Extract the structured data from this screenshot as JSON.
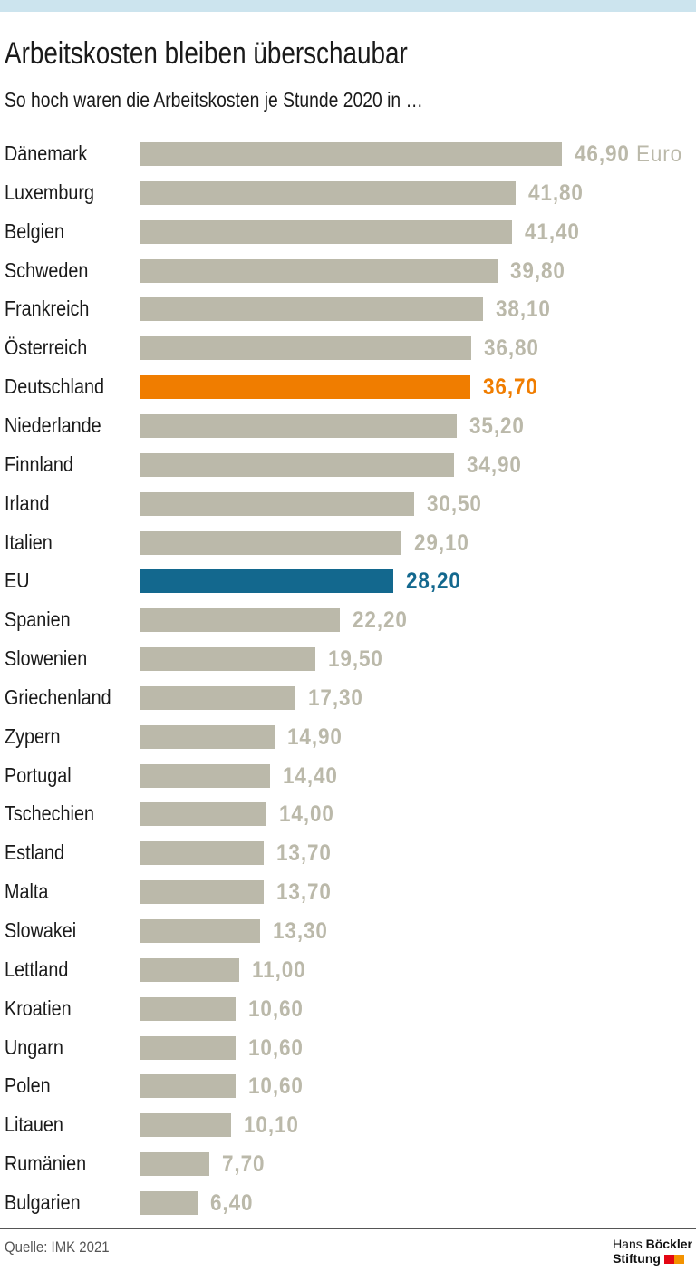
{
  "title": "Arbeitskosten bleiben überschaubar",
  "subtitle": "So hoch waren die Arbeitskosten je Stunde 2020 in …",
  "source": "Quelle: IMK 2021",
  "logo": {
    "line1a": "Hans",
    "line1b": "Böckler",
    "line2": "Stiftung"
  },
  "colors": {
    "default": "#bbb9aa",
    "highlight_germany": "#f07d00",
    "highlight_eu": "#13688e",
    "value_default": "#bbb9aa",
    "logo_red": "#e30613",
    "logo_orange": "#f39200"
  },
  "chart_data": {
    "type": "bar",
    "orientation": "horizontal",
    "unit": "Euro",
    "categories": [
      "Dänemark",
      "Luxemburg",
      "Belgien",
      "Schweden",
      "Frankreich",
      "Österreich",
      "Deutschland",
      "Niederlande",
      "Finnland",
      "Irland",
      "Italien",
      "EU",
      "Spanien",
      "Slowenien",
      "Griechenland",
      "Zypern",
      "Portugal",
      "Tschechien",
      "Estland",
      "Malta",
      "Slowakei",
      "Lettland",
      "Kroatien",
      "Ungarn",
      "Polen",
      "Litauen",
      "Rumänien",
      "Bulgarien"
    ],
    "values": [
      46.9,
      41.8,
      41.4,
      39.8,
      38.1,
      36.8,
      36.7,
      35.2,
      34.9,
      30.5,
      29.1,
      28.2,
      22.2,
      19.5,
      17.3,
      14.9,
      14.4,
      14.0,
      13.7,
      13.7,
      13.3,
      11.0,
      10.6,
      10.6,
      10.6,
      10.1,
      7.7,
      6.4
    ],
    "value_labels": [
      "46,90",
      "41,80",
      "41,40",
      "39,80",
      "38,10",
      "36,80",
      "36,70",
      "35,20",
      "34,90",
      "30,50",
      "29,10",
      "28,20",
      "22,20",
      "19,50",
      "17,30",
      "14,90",
      "14,40",
      "14,00",
      "13,70",
      "13,70",
      "13,30",
      "11,00",
      "10,60",
      "10,60",
      "10,60",
      "10,10",
      "7,70",
      "6,40"
    ],
    "highlight": {
      "Deutschland": "#f07d00",
      "EU": "#13688e"
    },
    "grid": false,
    "legend": "none"
  }
}
